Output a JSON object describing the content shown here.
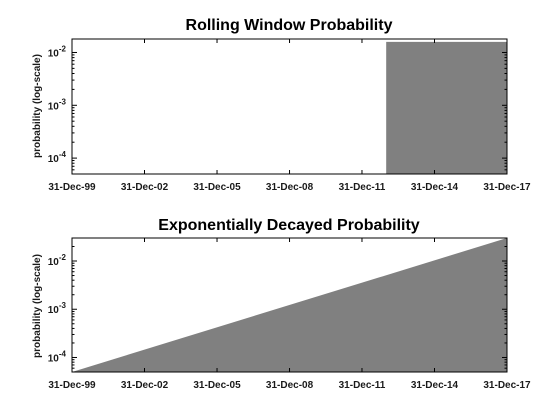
{
  "chart_data": [
    {
      "type": "area",
      "title": "Rolling Window Probability",
      "xlabel": "",
      "ylabel": "probability (log-scale)",
      "yscale": "log",
      "xlim": [
        "1999-12-31",
        "2017-12-31"
      ],
      "ylim": [
        5e-05,
        0.018
      ],
      "x_ticks": [
        {
          "date": "1999-12-31",
          "label": "31-Dec-99"
        },
        {
          "date": "2002-12-31",
          "label": "31-Dec-02"
        },
        {
          "date": "2005-12-31",
          "label": "31-Dec-05"
        },
        {
          "date": "2008-12-31",
          "label": "31-Dec-08"
        },
        {
          "date": "2011-12-31",
          "label": "31-Dec-11"
        },
        {
          "date": "2014-12-31",
          "label": "31-Dec-14"
        },
        {
          "date": "2017-12-31",
          "label": "31-Dec-17"
        }
      ],
      "y_ticks": [
        {
          "value": 0.0001,
          "base": "10",
          "exp": "-4"
        },
        {
          "value": 0.001,
          "base": "10",
          "exp": "-3"
        },
        {
          "value": 0.01,
          "base": "10",
          "exp": "-2"
        }
      ],
      "series": [
        {
          "color": "#808080",
          "points": [
            {
              "x": "2012-12-31",
              "y": 0.0159
            },
            {
              "x": "2017-12-31",
              "y": 0.0159
            }
          ]
        }
      ],
      "grid": false,
      "legend": "none"
    },
    {
      "type": "area",
      "title": "Exponentially Decayed Probability",
      "xlabel": "",
      "ylabel": "probability (log-scale)",
      "yscale": "log",
      "xlim": [
        "1999-12-31",
        "2017-12-31"
      ],
      "ylim": [
        5e-05,
        0.03
      ],
      "x_ticks": [
        {
          "date": "1999-12-31",
          "label": "31-Dec-99"
        },
        {
          "date": "2002-12-31",
          "label": "31-Dec-02"
        },
        {
          "date": "2005-12-31",
          "label": "31-Dec-05"
        },
        {
          "date": "2008-12-31",
          "label": "31-Dec-08"
        },
        {
          "date": "2011-12-31",
          "label": "31-Dec-11"
        },
        {
          "date": "2014-12-31",
          "label": "31-Dec-14"
        },
        {
          "date": "2017-12-31",
          "label": "31-Dec-17"
        }
      ],
      "y_ticks": [
        {
          "value": 0.0001,
          "base": "10",
          "exp": "-4"
        },
        {
          "value": 0.001,
          "base": "10",
          "exp": "-3"
        },
        {
          "value": 0.01,
          "base": "10",
          "exp": "-2"
        }
      ],
      "series": [
        {
          "color": "#808080",
          "points": [
            {
              "x": "1999-12-31",
              "y": 5e-05
            },
            {
              "x": "2017-12-31",
              "y": 0.03
            }
          ]
        }
      ],
      "grid": false,
      "legend": "none"
    }
  ]
}
